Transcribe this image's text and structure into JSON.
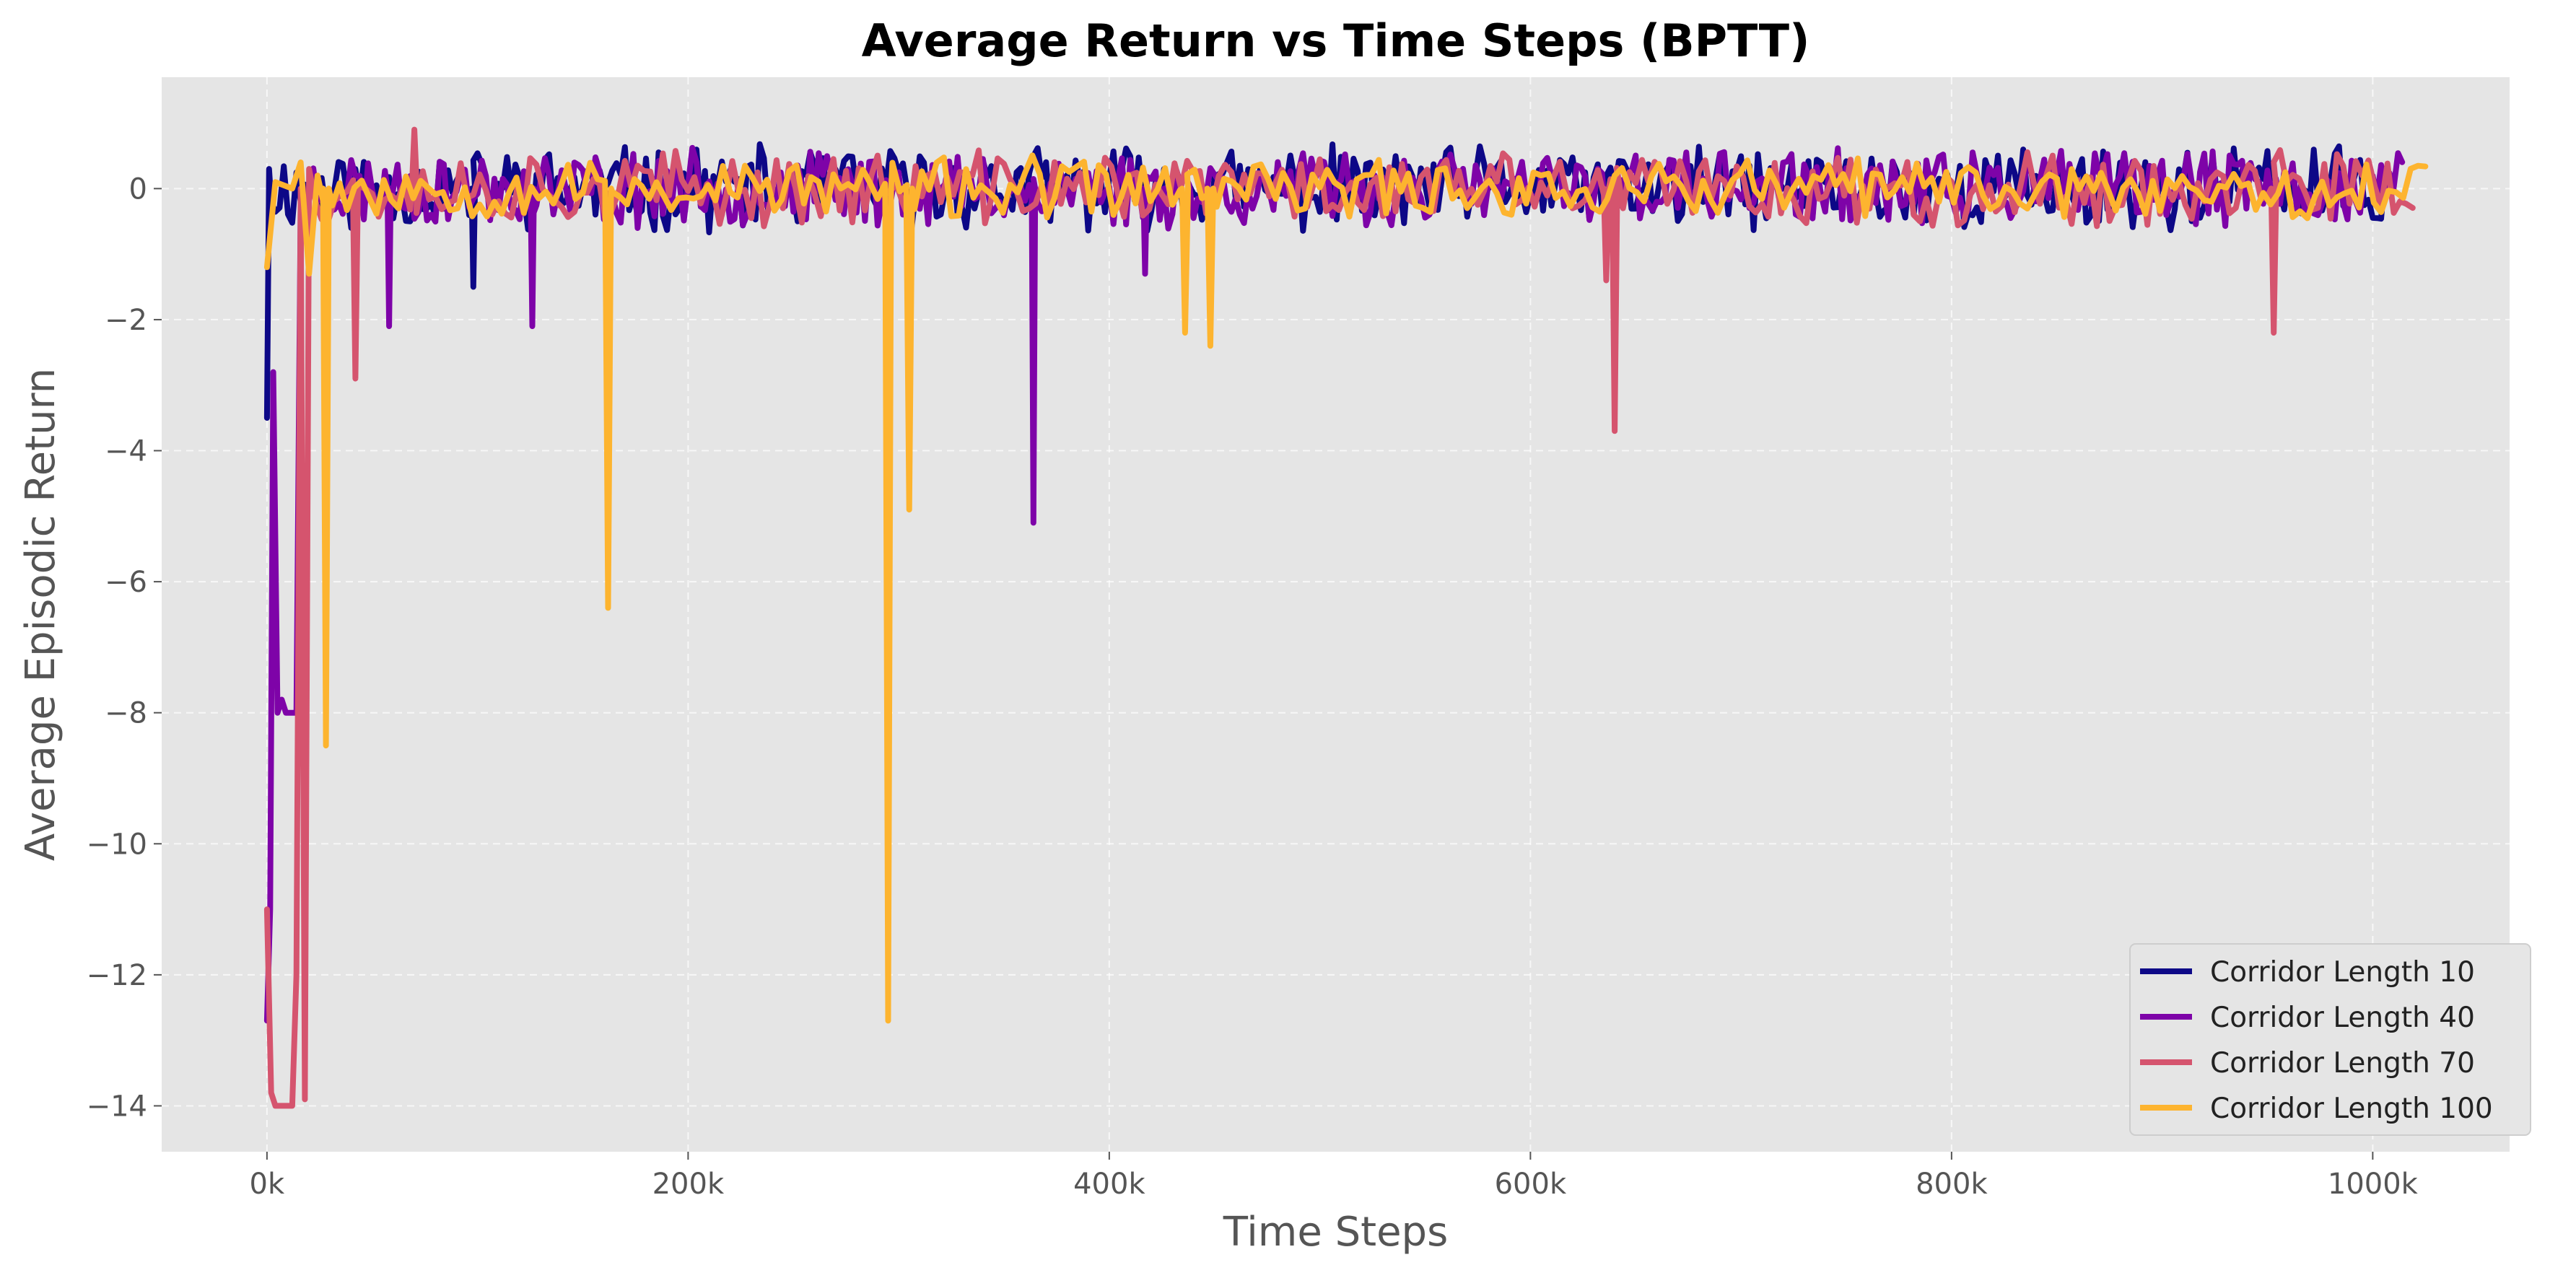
{
  "chart_data": {
    "type": "line",
    "title": "Average Return vs Time Steps (BPTT)",
    "xlabel": "Time Steps",
    "ylabel": "Average Episodic Return",
    "xlim": [
      -50000,
      1065000
    ],
    "ylim": [
      -14.7,
      1.7
    ],
    "xticks": [
      0,
      200000,
      400000,
      600000,
      800000,
      1000000
    ],
    "xtick_labels": [
      "0k",
      "200k",
      "400k",
      "600k",
      "800k",
      "1000k"
    ],
    "yticks": [
      0,
      -2,
      -4,
      -6,
      -8,
      -10,
      -12,
      -14
    ],
    "ytick_labels": [
      "0",
      "−2",
      "−4",
      "−6",
      "−8",
      "−10",
      "−12",
      "−14"
    ],
    "grid": true,
    "legend_position": "bottom-right",
    "background": "#e5e5e5",
    "series": [
      {
        "name": "Corridor Length 10",
        "color": "#0d0887",
        "x_end": 1010000,
        "noise_amp": 0.55,
        "wiggle_step": 2000,
        "seed": 11,
        "points": [
          [
            0,
            -3.5
          ],
          [
            1000,
            0.3
          ],
          [
            2000,
            -0.2
          ]
        ],
        "spikes": [
          [
            98000,
            -1.5
          ]
        ]
      },
      {
        "name": "Corridor Length 40",
        "color": "#7e03a8",
        "x_end": 1015000,
        "noise_amp": 0.5,
        "wiggle_step": 2000,
        "seed": 23,
        "points": [
          [
            0,
            -12.7
          ],
          [
            1500,
            -11.0
          ],
          [
            3000,
            -2.8
          ],
          [
            5000,
            -8.0
          ],
          [
            7000,
            -7.8
          ],
          [
            9000,
            -8.0
          ],
          [
            14000,
            -8.0
          ],
          [
            16000,
            -0.2
          ]
        ],
        "spikes": [
          [
            58000,
            -2.1
          ],
          [
            126000,
            -2.1
          ],
          [
            364000,
            -5.1
          ],
          [
            417000,
            -1.3
          ]
        ]
      },
      {
        "name": "Corridor Length 70",
        "color": "#d5546e",
        "x_end": 1020000,
        "noise_amp": 0.48,
        "wiggle_step": 3000,
        "seed": 37,
        "points": [
          [
            0,
            -11.0
          ],
          [
            2000,
            -13.8
          ],
          [
            4000,
            -14.0
          ],
          [
            12000,
            -14.0
          ],
          [
            14000,
            -12.0
          ],
          [
            16000,
            0.0
          ],
          [
            18000,
            -13.9
          ],
          [
            20000,
            0.3
          ]
        ],
        "spikes": [
          [
            42000,
            -2.9
          ],
          [
            70000,
            0.9
          ],
          [
            636000,
            -1.4
          ],
          [
            640000,
            -3.7
          ],
          [
            953000,
            -2.2
          ]
        ]
      },
      {
        "name": "Corridor Length 100",
        "color": "#fdb42f",
        "x_end": 1025000,
        "noise_amp": 0.38,
        "wiggle_step": 3500,
        "seed": 53,
        "points": [
          [
            0,
            -1.2
          ],
          [
            4000,
            0.1
          ],
          [
            12000,
            0.0
          ],
          [
            16000,
            0.4
          ],
          [
            20000,
            -1.3
          ],
          [
            24000,
            0.2
          ]
        ],
        "spikes": [
          [
            28000,
            -8.5
          ],
          [
            162000,
            -6.4
          ],
          [
            295000,
            -12.7
          ],
          [
            305000,
            -4.9
          ],
          [
            436000,
            -2.2
          ],
          [
            448000,
            -2.4
          ]
        ]
      }
    ]
  }
}
